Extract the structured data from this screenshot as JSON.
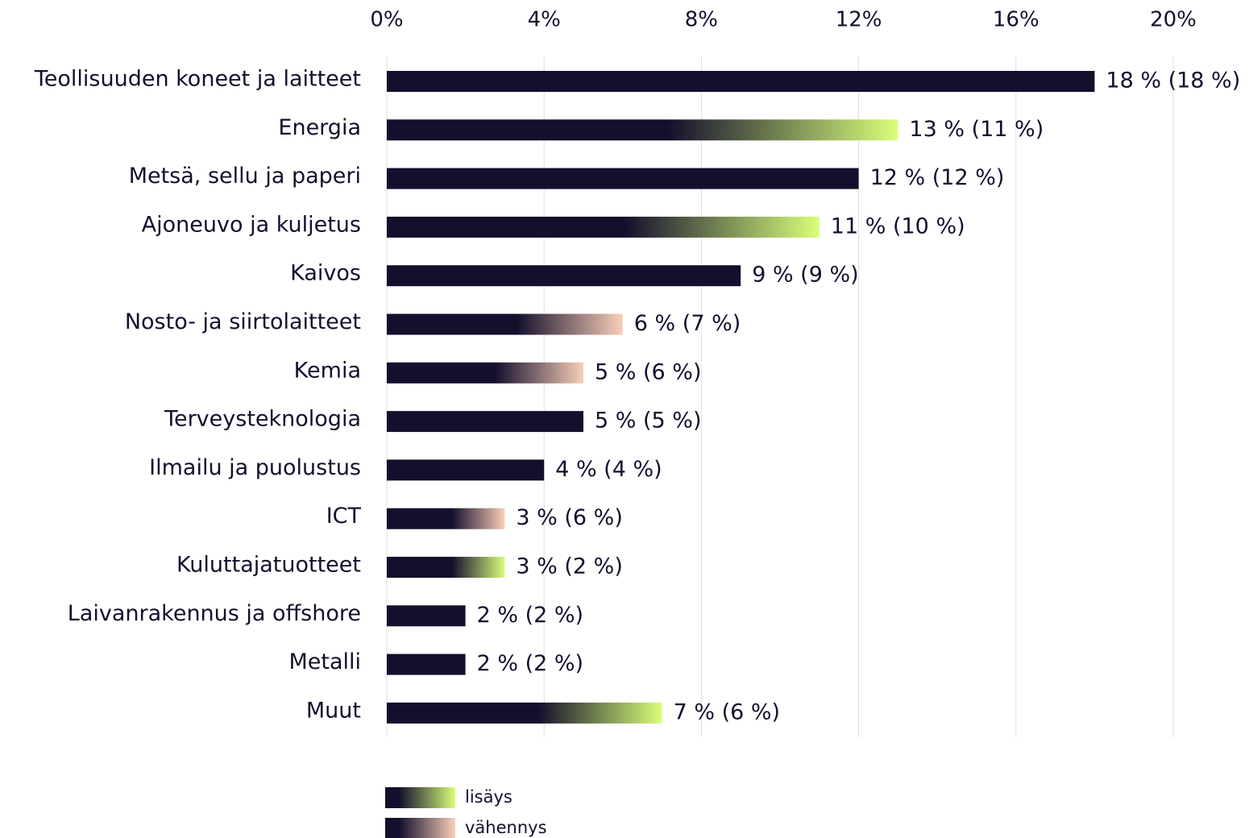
{
  "chart_data": {
    "type": "bar",
    "orientation": "horizontal",
    "categories": [
      "Teollisuuden koneet ja laitteet",
      "Energia",
      "Metsä, sellu ja paperi",
      "Ajoneuvo ja kuljetus",
      "Kaivos",
      "Nosto- ja siirtolaitteet",
      "Kemia",
      "Terveysteknologia",
      "Ilmailu ja puolustus",
      "ICT",
      "Kuluttajatuotteet",
      "Laivanrakennus ja offshore",
      "Metalli",
      "Muut"
    ],
    "values": [
      18,
      13,
      12,
      11,
      9,
      6,
      5,
      5,
      4,
      3,
      3,
      2,
      2,
      7
    ],
    "previous": [
      18,
      11,
      12,
      10,
      9,
      7,
      6,
      5,
      4,
      6,
      2,
      2,
      2,
      6
    ],
    "value_labels": [
      "18 % (18 %)",
      "13 % (11 %)",
      "12 % (12 %)",
      "11 % (10 %)",
      "9 % (9 %)",
      "6 % (7 %)",
      "5 % (6 %)",
      "5 % (5 %)",
      "4 % (4 %)",
      "3 % (6 %)",
      "3 % (2 %)",
      "2 % (2 %)",
      "2 % (2 %)",
      "7 % (6 %)"
    ],
    "color": "#140f2d",
    "xlim": [
      0,
      20
    ],
    "xticks": [
      {
        "value": 0,
        "label": "0%"
      },
      {
        "value": 4,
        "label": "4%"
      },
      {
        "value": 8,
        "label": "8%"
      },
      {
        "value": 12,
        "label": "12%"
      },
      {
        "value": 16,
        "label": "16%"
      },
      {
        "value": 20,
        "label": "20%"
      }
    ],
    "grid": true,
    "legend": [
      {
        "label": "lisäys",
        "color": "#d9ff7a"
      },
      {
        "label": "vähennys",
        "color": "#f9cfb8"
      }
    ]
  }
}
